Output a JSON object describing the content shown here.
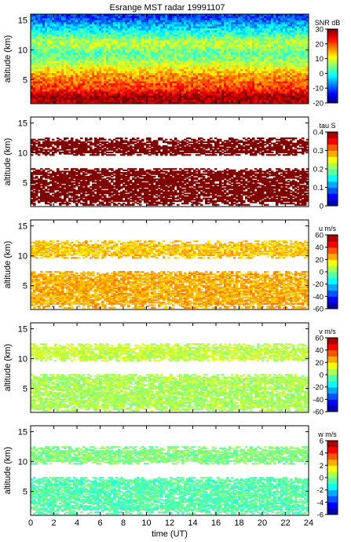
{
  "figure": {
    "title": "Esrange MST radar 19991107",
    "xlabel": "time (UT)"
  },
  "chart_data": [
    {
      "type": "heatmap",
      "panel": "snr",
      "ylabel": "altitude (km)",
      "colorbar_label": "SNR dB",
      "x_range": [
        0,
        24
      ],
      "y_range": [
        1,
        16
      ],
      "x_ticks": [
        0,
        2,
        4,
        6,
        8,
        10,
        12,
        14,
        16,
        18,
        20,
        22,
        24
      ],
      "y_ticks": [
        5,
        10,
        15
      ],
      "colorbar_range": [
        -20,
        30
      ],
      "colorbar_ticks": [
        -20,
        -10,
        0,
        10,
        20,
        30
      ],
      "altitude_profile": [
        {
          "alt": 1.5,
          "value": 28
        },
        {
          "alt": 2.2,
          "value": 29
        },
        {
          "alt": 2.8,
          "value": 25
        },
        {
          "alt": 3.5,
          "value": 21
        },
        {
          "alt": 4.2,
          "value": 20
        },
        {
          "alt": 5.0,
          "value": 18
        },
        {
          "alt": 5.8,
          "value": 16
        },
        {
          "alt": 6.5,
          "value": 13
        },
        {
          "alt": 7.5,
          "value": 9
        },
        {
          "alt": 8.5,
          "value": 5
        },
        {
          "alt": 9.5,
          "value": 3
        },
        {
          "alt": 10.5,
          "value": 7
        },
        {
          "alt": 11.5,
          "value": 8
        },
        {
          "alt": 12.5,
          "value": 2
        },
        {
          "alt": 13.5,
          "value": -2
        },
        {
          "alt": 14.5,
          "value": -6
        },
        {
          "alt": 15.5,
          "value": -11
        }
      ]
    },
    {
      "type": "heatmap",
      "panel": "tau",
      "ylabel": "altitude (km)",
      "colorbar_label": "tau S",
      "x_range": [
        0,
        24
      ],
      "y_range": [
        1,
        16
      ],
      "y_ticks": [
        5,
        10,
        15
      ],
      "colorbar_range": [
        0,
        0.4
      ],
      "colorbar_ticks": [
        "0",
        "0.1",
        "0.2",
        "0.3",
        "0.4"
      ],
      "data_bands": [
        {
          "alt_min": 1.2,
          "alt_max": 7.5,
          "value": 0.4
        },
        {
          "alt_min": 9.5,
          "alt_max": 12.5,
          "value": 0.4
        }
      ]
    },
    {
      "type": "heatmap",
      "panel": "u",
      "ylabel": "altitude (km)",
      "colorbar_label": "u m/s",
      "x_range": [
        0,
        24
      ],
      "y_range": [
        1,
        16
      ],
      "y_ticks": [
        5,
        10,
        15
      ],
      "colorbar_range": [
        -60,
        60
      ],
      "colorbar_ticks": [
        -60,
        -40,
        -20,
        0,
        20,
        40,
        60
      ],
      "data_bands": [
        {
          "alt_min": 1.2,
          "alt_max": 7.5,
          "value": 25
        },
        {
          "alt_min": 9.5,
          "alt_max": 12.5,
          "value": 22
        }
      ]
    },
    {
      "type": "heatmap",
      "panel": "v",
      "ylabel": "altitude (km)",
      "colorbar_label": "v m/s",
      "x_range": [
        0,
        24
      ],
      "y_range": [
        1,
        16
      ],
      "y_ticks": [
        5,
        10,
        15
      ],
      "colorbar_range": [
        -60,
        60
      ],
      "colorbar_ticks": [
        -60,
        -40,
        -20,
        0,
        20,
        40,
        60
      ],
      "data_bands": [
        {
          "alt_min": 1.2,
          "alt_max": 7.5,
          "value": 5
        },
        {
          "alt_min": 9.5,
          "alt_max": 12.5,
          "value": 8
        }
      ]
    },
    {
      "type": "heatmap",
      "panel": "w",
      "ylabel": "altitude (km)",
      "colorbar_label": "w m/s",
      "x_range": [
        0,
        24
      ],
      "y_range": [
        1,
        16
      ],
      "y_ticks": [
        5,
        10,
        15
      ],
      "colorbar_range": [
        -6,
        6
      ],
      "colorbar_ticks": [
        -6,
        -4,
        -2,
        0,
        2,
        4,
        6
      ],
      "data_bands": [
        {
          "alt_min": 1.2,
          "alt_max": 7.5,
          "value": -0.5
        },
        {
          "alt_min": 9.5,
          "alt_max": 12.5,
          "value": 0
        }
      ]
    }
  ]
}
